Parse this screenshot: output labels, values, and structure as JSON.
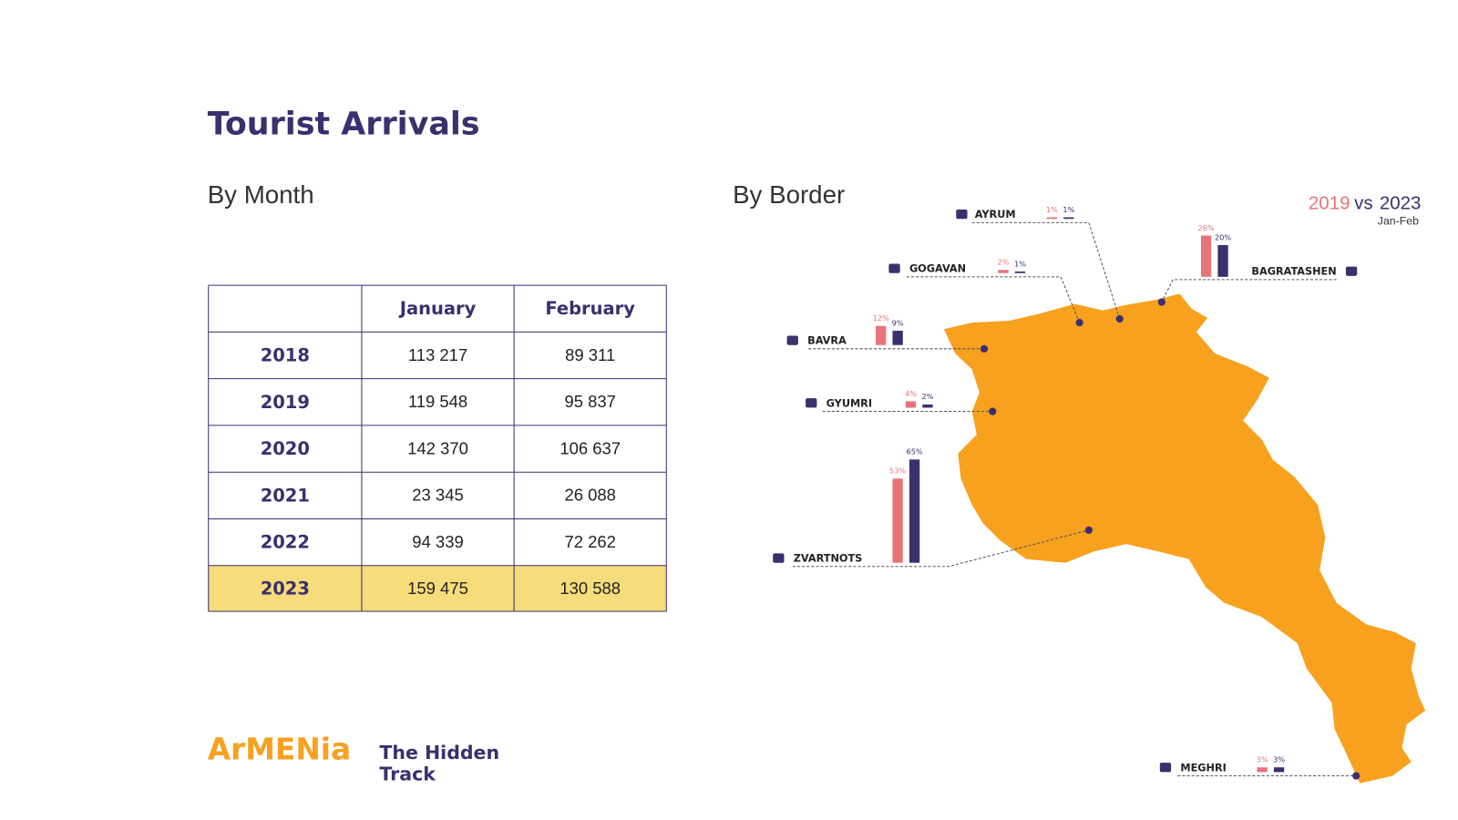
{
  "title": "Tourist Arrivals",
  "by_month": {
    "subtitle": "By Month",
    "table": {
      "header": [
        "January",
        "February"
      ],
      "rows": [
        {
          "year": "2018",
          "values": [
            "113 217",
            "89 311"
          ]
        },
        {
          "year": "2019",
          "values": [
            "119 548",
            "95 837"
          ]
        },
        {
          "year": "2020",
          "values": [
            "142 370",
            "106 637"
          ]
        },
        {
          "year": "2021",
          "values": [
            "23 345",
            "26 088"
          ]
        },
        {
          "year": "2022",
          "values": [
            "94 339",
            "72 262"
          ]
        },
        {
          "year": "2023",
          "values": [
            "159 475",
            "130 588"
          ],
          "highlight": true
        }
      ]
    }
  },
  "by_border": {
    "subtitle": "By Border",
    "legend": {
      "series": [
        {
          "name": "2019",
          "color": "#E8737A"
        },
        {
          "name": "2023",
          "color": "#3B2F6E"
        }
      ],
      "vs": "vs",
      "period": "Jan-Feb"
    },
    "borders": [
      {
        "name": "AYRUM",
        "values": [
          1,
          1
        ],
        "value_labels": [
          "1%",
          "1%"
        ]
      },
      {
        "name": "GOGAVAN",
        "values": [
          2,
          1
        ],
        "value_labels": [
          "2%",
          "1%"
        ]
      },
      {
        "name": "BAGRATASHEN",
        "values": [
          26,
          20
        ],
        "value_labels": [
          "26%",
          "20%"
        ]
      },
      {
        "name": "BAVRA",
        "values": [
          12,
          9
        ],
        "value_labels": [
          "12%",
          "9%"
        ]
      },
      {
        "name": "GYUMRI",
        "values": [
          4,
          2
        ],
        "value_labels": [
          "4%",
          "2%"
        ]
      },
      {
        "name": "ZVARTNOTS",
        "values": [
          53,
          65
        ],
        "value_labels": [
          "53%",
          "65%"
        ]
      },
      {
        "name": "MEGHRI",
        "values": [
          3,
          3
        ],
        "value_labels": [
          "3%",
          "3%"
        ]
      }
    ]
  },
  "brand": {
    "name": "ArMENia",
    "tagline": [
      "The Hidden",
      "Track"
    ]
  }
}
